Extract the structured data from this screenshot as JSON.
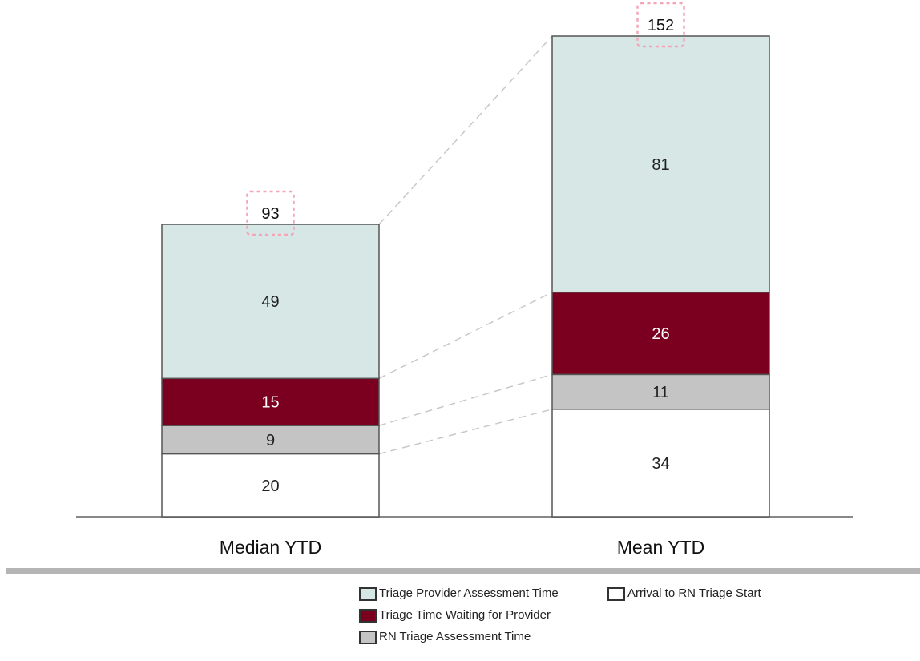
{
  "chart_data": {
    "type": "bar",
    "stacked": true,
    "title": "",
    "xlabel": "",
    "ylabel": "",
    "ylim": [
      0,
      160
    ],
    "categories": [
      "Median YTD",
      "Mean YTD"
    ],
    "totals": [
      "93",
      "152"
    ],
    "series": [
      {
        "name": "Arrival to RN Triage Start",
        "color": "#ffffff",
        "label_color": "#222222",
        "values": [
          20,
          34
        ]
      },
      {
        "name": "RN Triage Assessment Time",
        "color": "#c4c4c4",
        "label_color": "#222222",
        "values": [
          9,
          11
        ]
      },
      {
        "name": "Triage Time Waiting for Provider",
        "color": "#7b0020",
        "label_color": "#ffffff",
        "values": [
          15,
          26
        ]
      },
      {
        "name": "Triage Provider Assessment Time",
        "color": "#d6e7e5",
        "label_color": "#222222",
        "values": [
          49,
          81
        ]
      }
    ],
    "grid": false,
    "legend_position": "bottom-right",
    "total_highlight_color": "#f4a6b8"
  },
  "legend": {
    "items": [
      {
        "label": "Triage Provider Assessment Time",
        "color": "#d6e7e5"
      },
      {
        "label": "Triage Time Waiting for Provider",
        "color": "#7b0020"
      },
      {
        "label": "RN Triage Assessment Time",
        "color": "#c4c4c4"
      },
      {
        "label": "Arrival to RN Triage Start",
        "color": "#ffffff"
      }
    ]
  }
}
